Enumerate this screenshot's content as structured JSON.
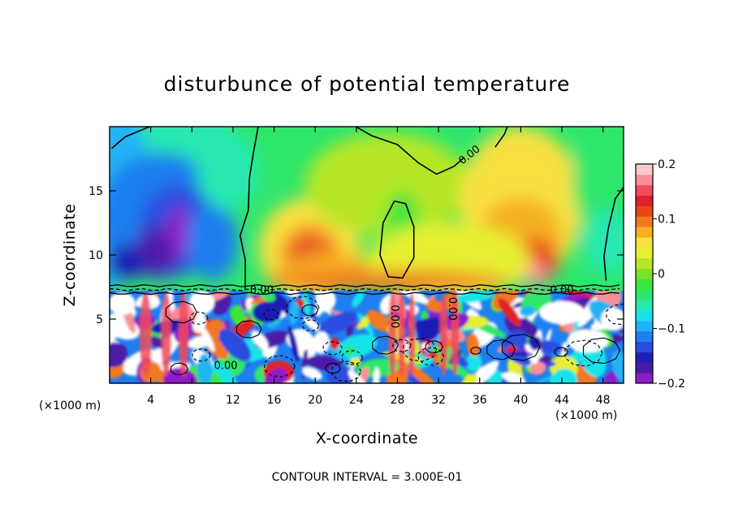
{
  "chart_data": {
    "type": "heatmap",
    "title": "disturbunce of potential temperature",
    "xlabel": "X-coordinate",
    "ylabel": "Z-coordinate",
    "x_unit_label": "(×1000 m)",
    "xlim": [
      0,
      50
    ],
    "ylim": [
      0,
      20
    ],
    "x_ticks": [
      4,
      8,
      12,
      16,
      20,
      24,
      28,
      32,
      36,
      40,
      44,
      48
    ],
    "y_ticks": [
      5,
      10,
      15
    ],
    "colorbar": {
      "range": [
        -0.2,
        0.2
      ],
      "tick_values": [
        0.2,
        0.1,
        0,
        -0.1,
        -0.2
      ],
      "tick_labels": [
        "0.2",
        "0.1",
        "0",
        "−0.1",
        "−0.2"
      ],
      "colors": [
        "#8c1cc8",
        "#4b1aa8",
        "#1f1fb4",
        "#2a4de0",
        "#1f7ef0",
        "#21b4f5",
        "#16e3e8",
        "#27e8b0",
        "#2fe66c",
        "#3de63a",
        "#7ae02a",
        "#b5e628",
        "#e6f032",
        "#f8e040",
        "#f5b020",
        "#f27820",
        "#ea4418",
        "#e0202c",
        "#f04a5c",
        "#f89098",
        "#fccac8"
      ]
    },
    "contour_labels": [
      {
        "text": "0.00",
        "x": 35.2,
        "z": 17.6
      },
      {
        "text": "0.00",
        "x": 14.8,
        "z": 7.0
      },
      {
        "text": "0.00",
        "x": 44.0,
        "z": 7.0
      },
      {
        "text": "0.00",
        "x": 11.3,
        "z": 1.1
      },
      {
        "text": "0.00",
        "x": 27.4,
        "z": 5.2
      },
      {
        "text": "0.00",
        "x": 33.0,
        "z": 5.8
      }
    ],
    "grid": false,
    "legend": "colorbar-right"
  },
  "contour_interval_note": "CONTOUR INTERVAL = 3.000E-01"
}
